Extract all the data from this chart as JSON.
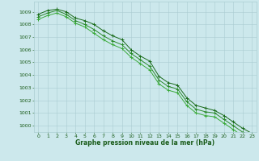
{
  "hours": [
    0,
    1,
    2,
    3,
    4,
    5,
    6,
    7,
    8,
    9,
    10,
    11,
    12,
    13,
    14,
    15,
    16,
    17,
    18,
    19,
    20,
    21,
    22,
    23
  ],
  "line1": [
    1008.8,
    1009.1,
    1009.2,
    1009.0,
    1008.5,
    1008.3,
    1008.0,
    1007.5,
    1007.1,
    1006.8,
    1006.0,
    1005.5,
    1005.1,
    1003.9,
    1003.4,
    1003.2,
    1002.2,
    1001.6,
    1001.4,
    1001.2,
    1000.8,
    1000.3,
    999.8,
    999.4
  ],
  "line2": [
    1008.6,
    1008.9,
    1009.1,
    1008.8,
    1008.3,
    1008.0,
    1007.6,
    1007.1,
    1006.7,
    1006.4,
    1005.7,
    1005.2,
    1004.7,
    1003.6,
    1003.1,
    1002.9,
    1001.9,
    1001.3,
    1001.1,
    1001.0,
    1000.5,
    1000.0,
    999.5,
    999.1
  ],
  "line3": [
    1008.4,
    1008.7,
    1008.9,
    1008.6,
    1008.1,
    1007.8,
    1007.3,
    1006.8,
    1006.4,
    1006.1,
    1005.4,
    1004.9,
    1004.4,
    1003.3,
    1002.8,
    1002.6,
    1001.6,
    1001.0,
    1000.8,
    1000.7,
    1000.2,
    999.7,
    999.2,
    998.8
  ],
  "line_color1": "#1a6b1a",
  "line_color2": "#2a8a2a",
  "line_color3": "#3aaa3a",
  "bg_color": "#cce8ec",
  "grid_color": "#aacdd2",
  "text_color": "#1a5c1a",
  "xlabel": "Graphe pression niveau de la mer (hPa)",
  "ylim_min": 999.5,
  "ylim_max": 1009.8,
  "xlim_min": -0.5,
  "xlim_max": 23.5,
  "yticks": [
    1000,
    1001,
    1002,
    1003,
    1004,
    1005,
    1006,
    1007,
    1008,
    1009
  ],
  "xticks": [
    0,
    1,
    2,
    3,
    4,
    5,
    6,
    7,
    8,
    9,
    10,
    11,
    12,
    13,
    14,
    15,
    16,
    17,
    18,
    19,
    20,
    21,
    22,
    23
  ],
  "tick_fontsize": 4.5,
  "xlabel_fontsize": 5.5,
  "linewidth": 0.7,
  "markersize": 2.5,
  "markeredgewidth": 0.7
}
